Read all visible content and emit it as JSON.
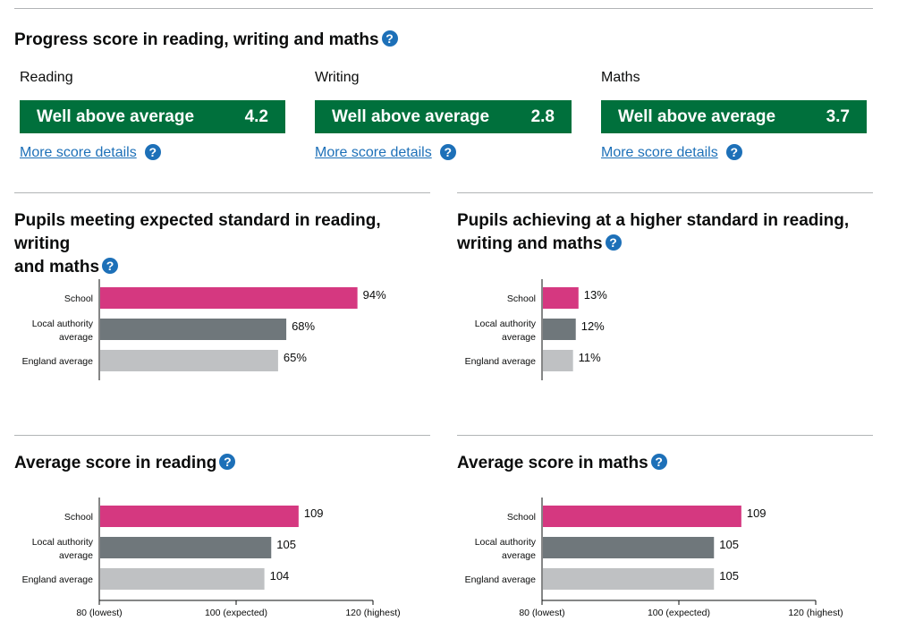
{
  "progress": {
    "title": "Progress score in reading, writing and maths",
    "help_icon": "question-icon",
    "subjects": [
      {
        "name": "Reading",
        "status": "Well above average",
        "score": "4.2",
        "link": "More score details"
      },
      {
        "name": "Writing",
        "status": "Well above average",
        "score": "2.8",
        "link": "More score details"
      },
      {
        "name": "Maths",
        "status": "Well above average",
        "score": "3.7",
        "link": "More score details"
      }
    ],
    "status_color": "#00703c"
  },
  "sections": {
    "expected": {
      "title_line1": "Pupils meeting expected standard in reading, writing",
      "title_line2": "and maths"
    },
    "higher": {
      "title_line1": "Pupils achieving at a higher standard in reading,",
      "title_line2": "writing and maths"
    },
    "reading": {
      "title": "Average score in reading"
    },
    "maths": {
      "title": "Average score in maths"
    }
  },
  "colors": {
    "school": "#d53880",
    "local_authority": "#6f777b",
    "england": "#bfc1c3"
  },
  "chart_data": [
    {
      "type": "bar",
      "title": "Pupils meeting expected standard in reading, writing and maths",
      "orientation": "horizontal",
      "categories": [
        "School",
        "Local authority average",
        "England average"
      ],
      "category_lines": [
        [
          "School"
        ],
        [
          "Local authority",
          "average"
        ],
        [
          "England average"
        ]
      ],
      "values": [
        94,
        68,
        65
      ],
      "value_labels": [
        "94%",
        "68%",
        "65%"
      ],
      "xlim": [
        0,
        100
      ],
      "show_axis": false
    },
    {
      "type": "bar",
      "title": "Pupils achieving at a higher standard in reading, writing and maths",
      "orientation": "horizontal",
      "categories": [
        "School",
        "Local authority average",
        "England average"
      ],
      "category_lines": [
        [
          "School"
        ],
        [
          "Local authority",
          "average"
        ],
        [
          "England average"
        ]
      ],
      "values": [
        13,
        12,
        11
      ],
      "value_labels": [
        "13%",
        "12%",
        "11%"
      ],
      "xlim": [
        0,
        100
      ],
      "show_axis": false
    },
    {
      "type": "bar",
      "title": "Average score in reading",
      "orientation": "horizontal",
      "categories": [
        "School",
        "Local authority average",
        "England average"
      ],
      "category_lines": [
        [
          "School"
        ],
        [
          "Local authority",
          "average"
        ],
        [
          "England average"
        ]
      ],
      "values": [
        109,
        105,
        104
      ],
      "value_labels": [
        "109",
        "105",
        "104"
      ],
      "xlim": [
        80,
        120
      ],
      "show_axis": true,
      "ticks": [
        80,
        100,
        120
      ],
      "tick_labels": [
        "80 (lowest)",
        "100 (expected)",
        "120 (highest)"
      ]
    },
    {
      "type": "bar",
      "title": "Average score in maths",
      "orientation": "horizontal",
      "categories": [
        "School",
        "Local authority average",
        "England average"
      ],
      "category_lines": [
        [
          "School"
        ],
        [
          "Local authority",
          "average"
        ],
        [
          "England average"
        ]
      ],
      "values": [
        109,
        105,
        105
      ],
      "value_labels": [
        "109",
        "105",
        "105"
      ],
      "xlim": [
        80,
        120
      ],
      "show_axis": true,
      "ticks": [
        80,
        100,
        120
      ],
      "tick_labels": [
        "80 (lowest)",
        "100 (expected)",
        "120 (highest)"
      ]
    }
  ]
}
